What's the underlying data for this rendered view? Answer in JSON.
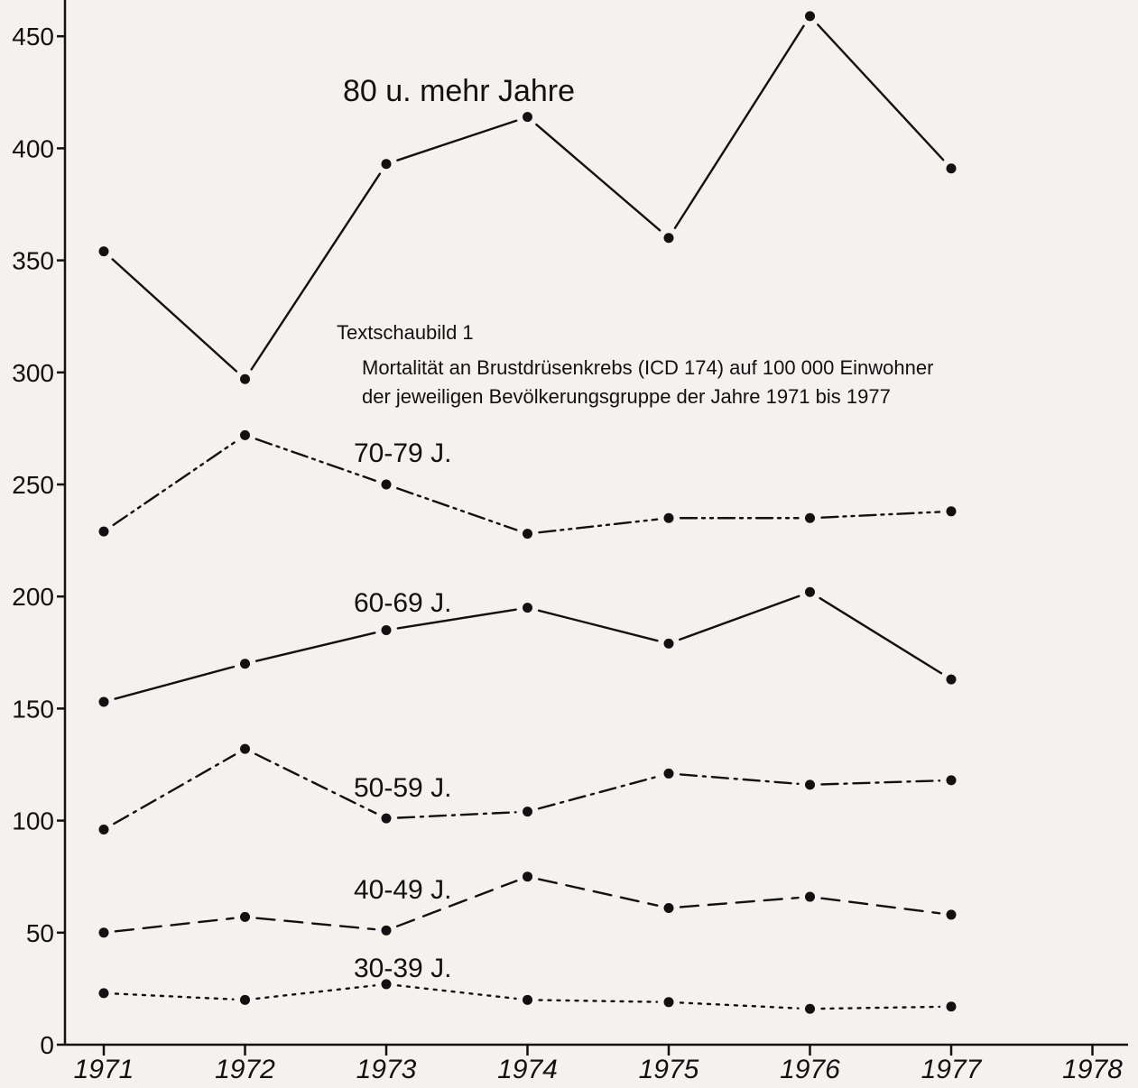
{
  "chart_data": {
    "type": "line",
    "title": "Textschaubild 1",
    "subtitle_lines": [
      "Mortalität an Brustdrüsenkrebs (ICD 174) auf 100 000 Einwohner",
      "der jeweiligen Bevölkerungsgruppe der Jahre 1971 bis 1977"
    ],
    "xlabel": "",
    "ylabel": "",
    "x_ticks": [
      "1971",
      "1972",
      "1973",
      "1974",
      "1975",
      "1976",
      "1977",
      "1978"
    ],
    "y_ticks": [
      0,
      50,
      100,
      150,
      200,
      250,
      300,
      350,
      400,
      450
    ],
    "ylim": [
      0,
      470
    ],
    "grid": false,
    "series": [
      {
        "name": "80 u. mehr Jahre",
        "style": "solid",
        "x": [
          "1971",
          "1972",
          "1973",
          "1974",
          "1975",
          "1976",
          "1977"
        ],
        "values": [
          354,
          297,
          393,
          414,
          360,
          459,
          391
        ]
      },
      {
        "name": "70-79 J.",
        "style": "dash-dot-dot",
        "x": [
          "1971",
          "1972",
          "1973",
          "1974",
          "1975",
          "1976",
          "1977"
        ],
        "values": [
          229,
          272,
          250,
          228,
          235,
          235,
          238
        ]
      },
      {
        "name": "60-69 J.",
        "style": "solid",
        "x": [
          "1971",
          "1972",
          "1973",
          "1974",
          "1975",
          "1976",
          "1977"
        ],
        "values": [
          153,
          170,
          185,
          195,
          179,
          202,
          163
        ]
      },
      {
        "name": "50-59 J.",
        "style": "dash-dot",
        "x": [
          "1971",
          "1972",
          "1973",
          "1974",
          "1975",
          "1976",
          "1977"
        ],
        "values": [
          96,
          132,
          101,
          104,
          121,
          116,
          118
        ]
      },
      {
        "name": "40-49 J.",
        "style": "dashed",
        "x": [
          "1971",
          "1972",
          "1973",
          "1974",
          "1975",
          "1976",
          "1977"
        ],
        "values": [
          50,
          57,
          51,
          75,
          61,
          66,
          58
        ]
      },
      {
        "name": "30-39 J.",
        "style": "dotted",
        "x": [
          "1971",
          "1972",
          "1973",
          "1974",
          "1975",
          "1976",
          "1977"
        ],
        "values": [
          23,
          20,
          27,
          20,
          19,
          16,
          17
        ]
      }
    ]
  }
}
